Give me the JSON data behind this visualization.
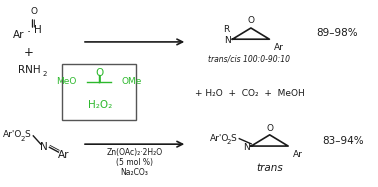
{
  "bg_color": "#ffffff",
  "green": "#2db82d",
  "black": "#1a1a1a",
  "gray": "#555555",
  "reagent_line1": "Zn(OAc)₂·2H₂O",
  "reagent_line2": "(5 mol %)",
  "reagent_line3": "Na₂CO₃",
  "yield_top": "89–98%",
  "yield_bot": "83–94%",
  "trans_cis": "trans/cis 100:0-90:10",
  "trans_label": "trans",
  "byproducts": "+ H₂O  +  CO₂  +  MeOH"
}
